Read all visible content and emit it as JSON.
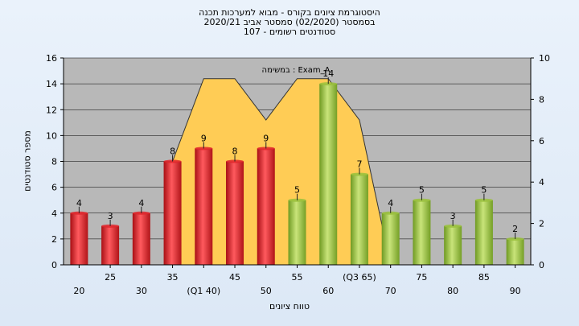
{
  "titles": {
    "line1": "היסטוגרמת ציונים בקורס - מבוא למערכות תכנה",
    "line2": "בסמסטר  (02/2020)  סמסטר אביב 2020/21",
    "line3": "סטודנטים רשומים - 107"
  },
  "chart_data": {
    "type": "bar",
    "xlabel": "טווח ציונים",
    "ylabel": "מספר סטודנטים",
    "ylim": [
      0,
      16
    ],
    "y2lim": [
      0,
      10
    ],
    "yticks": [
      0,
      2,
      4,
      6,
      8,
      10,
      12,
      14,
      16
    ],
    "y2ticks": [
      0,
      2,
      4,
      6,
      8,
      10
    ],
    "grid": true,
    "categories": [
      "20",
      "25",
      "30",
      "35",
      "(Q1 40)",
      "45",
      "50",
      "55",
      "60",
      "(Q3 65)",
      "70",
      "75",
      "80",
      "85",
      "90"
    ],
    "values": [
      4,
      3,
      4,
      8,
      9,
      8,
      9,
      5,
      14,
      7,
      4,
      5,
      3,
      5,
      2
    ],
    "bar_colors": [
      "#e0262b",
      "#e0262b",
      "#e0262b",
      "#e0262b",
      "#e0262b",
      "#e0262b",
      "#e0262b",
      "#9ac13c",
      "#9ac13c",
      "#9ac13c",
      "#9ac13c",
      "#9ac13c",
      "#9ac13c",
      "#9ac13c",
      "#9ac13c"
    ],
    "area_color": "#ffcc55",
    "area_points": [
      {
        "x": "35",
        "y": 5
      },
      {
        "x": "(Q1 40)",
        "y": 9
      },
      {
        "x": "45",
        "y": 9
      },
      {
        "x": "50",
        "y": 7
      },
      {
        "x": "55",
        "y": 9
      },
      {
        "x": "60",
        "y": 9
      },
      {
        "x": "(Q3 65)",
        "y": 7
      },
      {
        "x": "70",
        "y": 0
      }
    ],
    "annotation": "במשימה : Exam_A"
  }
}
